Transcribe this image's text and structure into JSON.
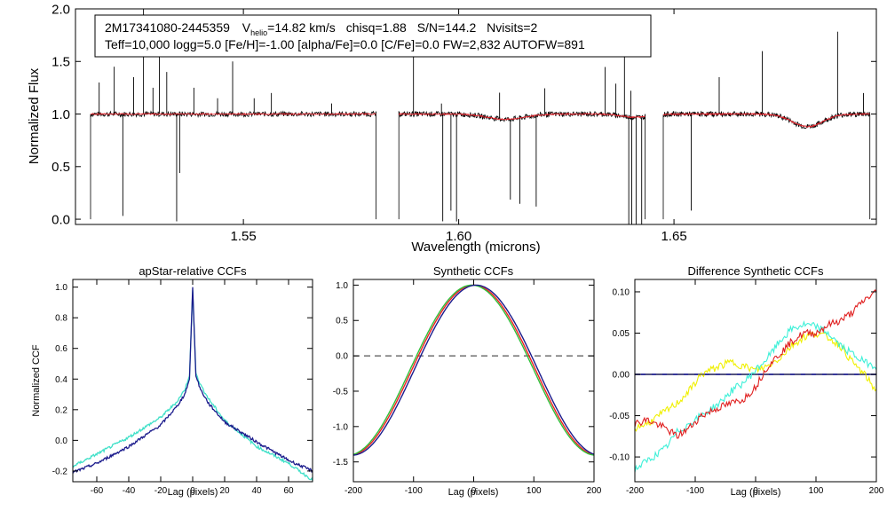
{
  "chart_data": [
    {
      "type": "line",
      "id": "spectrum",
      "info_line1": {
        "star": "2M17341080-2445359",
        "v_prefix": "V",
        "v_sub": "helio",
        "v_value": "=14.82 km/s",
        "chisq": "chisq=1.88",
        "sn": "S/N=144.2",
        "nvisits": "Nvisits=2"
      },
      "info_line2": "Teff=10,000 logg=5.0 [Fe/H]=-1.00 [alpha/Fe]=0.0 [C/Fe]=0.0 FW=2,832 AUTOFW=891",
      "xlabel": "Wavelength (microns)",
      "ylabel": "Normalized Flux",
      "xlim": [
        1.511,
        1.697
      ],
      "ylim": [
        -0.05,
        2.0
      ],
      "xticks": [
        "1.55",
        "1.60",
        "1.65"
      ],
      "xtick_values": [
        1.55,
        1.6,
        1.65
      ],
      "yticks": [
        "0.0",
        "0.5",
        "1.0",
        "1.5",
        "2.0"
      ],
      "ytick_values": [
        0.0,
        0.5,
        1.0,
        1.5,
        2.0
      ],
      "chips": [
        [
          1.5145,
          1.5808
        ],
        [
          1.5861,
          1.6433
        ],
        [
          1.6475,
          1.6955
        ]
      ],
      "dips": [
        {
          "x": 1.522,
          "depth": 0.95
        },
        {
          "x": 1.5345,
          "depth": 1.0
        },
        {
          "x": 1.5352,
          "depth": 0.55
        },
        {
          "x": 1.5963,
          "depth": 1.0
        },
        {
          "x": 1.5982,
          "depth": 0.9
        },
        {
          "x": 1.5995,
          "depth": 1.0
        },
        {
          "x": 1.612,
          "depth": 0.75
        },
        {
          "x": 1.6142,
          "depth": 0.8
        },
        {
          "x": 1.618,
          "depth": 0.85
        },
        {
          "x": 1.6395,
          "depth": 1.0
        },
        {
          "x": 1.6402,
          "depth": 1.0
        },
        {
          "x": 1.6412,
          "depth": 1.0
        },
        {
          "x": 1.6425,
          "depth": 1.0
        },
        {
          "x": 1.654,
          "depth": 0.9
        }
      ],
      "spikes": [
        {
          "x": 1.5165,
          "h": 0.3
        },
        {
          "x": 1.52,
          "h": 0.45
        },
        {
          "x": 1.5245,
          "h": 0.35
        },
        {
          "x": 1.5268,
          "h": 1.0
        },
        {
          "x": 1.529,
          "h": 0.25
        },
        {
          "x": 1.5305,
          "h": 0.55
        },
        {
          "x": 1.5322,
          "h": 0.4
        },
        {
          "x": 1.5385,
          "h": 0.25
        },
        {
          "x": 1.544,
          "h": 0.15
        },
        {
          "x": 1.5475,
          "h": 0.5
        },
        {
          "x": 1.5525,
          "h": 0.15
        },
        {
          "x": 1.5565,
          "h": 0.2
        },
        {
          "x": 1.5705,
          "h": 0.1
        },
        {
          "x": 1.5895,
          "h": 0.6
        },
        {
          "x": 1.596,
          "h": 0.1
        },
        {
          "x": 1.6095,
          "h": 0.25
        },
        {
          "x": 1.62,
          "h": 0.25
        },
        {
          "x": 1.634,
          "h": 0.45
        },
        {
          "x": 1.6365,
          "h": 0.3
        },
        {
          "x": 1.6385,
          "h": 0.6
        },
        {
          "x": 1.64,
          "h": 0.25
        },
        {
          "x": 1.6605,
          "h": 0.35
        },
        {
          "x": 1.6705,
          "h": 0.6
        },
        {
          "x": 1.688,
          "h": 0.8
        },
        {
          "x": 1.694,
          "h": 0.2
        }
      ],
      "features": [
        {
          "x": 1.611,
          "width": 0.006,
          "depth": 0.05
        },
        {
          "x": 1.641,
          "width": 0.0045,
          "depth": 0.03
        },
        {
          "x": 1.681,
          "width": 0.005,
          "depth": 0.12
        }
      ],
      "series": [
        {
          "name": "observed",
          "color": "#000000"
        },
        {
          "name": "model",
          "color": "#e8242c"
        }
      ]
    },
    {
      "type": "line",
      "id": "apstar_ccf",
      "title": "apStar-relative CCFs",
      "xlabel": "Lag (pixels)",
      "ylabel": "Normalized CCF",
      "xlim": [
        -75,
        75
      ],
      "ylim": [
        -0.27,
        1.05
      ],
      "xticks": [
        "-60",
        "-40",
        "-20",
        "0",
        "20",
        "40",
        "60"
      ],
      "xtick_values": [
        -60,
        -40,
        -20,
        0,
        20,
        40,
        60
      ],
      "yticks": [
        "-0.2",
        "0.0",
        "0.2",
        "0.4",
        "0.6",
        "0.8",
        "1.0"
      ],
      "ytick_values": [
        -0.2,
        0.0,
        0.2,
        0.4,
        0.6,
        0.8,
        1.0
      ],
      "series": [
        {
          "name": "visit 1",
          "color": "#1b1b8c",
          "x": [
            -75,
            -60,
            -40,
            -20,
            -10,
            -5,
            -2,
            0,
            2,
            5,
            10,
            20,
            40,
            60,
            75
          ],
          "y": [
            -0.21,
            -0.15,
            -0.04,
            0.1,
            0.22,
            0.3,
            0.4,
            1.0,
            0.42,
            0.33,
            0.24,
            0.12,
            -0.01,
            -0.13,
            -0.2
          ]
        },
        {
          "name": "visit 2",
          "color": "#3fe0c8",
          "x": [
            -75,
            -60,
            -40,
            -20,
            -10,
            -5,
            -2,
            0,
            2,
            5,
            10,
            20,
            40,
            60,
            75
          ],
          "y": [
            -0.17,
            -0.09,
            0.02,
            0.15,
            0.25,
            0.33,
            0.42,
            0.98,
            0.44,
            0.36,
            0.27,
            0.13,
            -0.04,
            -0.15,
            -0.26
          ]
        }
      ]
    },
    {
      "type": "line",
      "id": "synthetic_ccf",
      "title": "Synthetic CCFs",
      "xlabel": "Lag (pixels)",
      "xlim": [
        -200,
        200
      ],
      "ylim": [
        -1.78,
        1.08
      ],
      "xticks": [
        "-200",
        "-100",
        "0",
        "100",
        "200"
      ],
      "xtick_values": [
        -200,
        -100,
        0,
        100,
        200
      ],
      "yticks": [
        "-1.5",
        "-1.0",
        "-0.5",
        "0.0",
        "0.5",
        "1.0"
      ],
      "ytick_values": [
        -1.5,
        -1.0,
        -0.5,
        0.0,
        0.5,
        1.0
      ],
      "reference_y": 0.0,
      "series": [
        {
          "name": "synthetic 1",
          "color": "#ee2020",
          "shift": 0
        },
        {
          "name": "synthetic 2",
          "color": "#2fbf3a",
          "shift": -3
        },
        {
          "name": "synthetic 3",
          "color": "#1b1b8c",
          "shift": 4
        }
      ]
    },
    {
      "type": "line",
      "id": "difference_ccf",
      "title": "Difference Synthetic CCFs",
      "xlabel": "Lag (pixels)",
      "xlim": [
        -200,
        200
      ],
      "ylim": [
        -0.13,
        0.115
      ],
      "xticks": [
        "-200",
        "-100",
        "0",
        "100",
        "200"
      ],
      "xtick_values": [
        -200,
        -100,
        0,
        100,
        200
      ],
      "yticks": [
        "-0.10",
        "-0.05",
        "0.00",
        "0.05",
        "0.10"
      ],
      "ytick_values": [
        -0.1,
        -0.05,
        0.0,
        0.05,
        0.1
      ],
      "reference_y": 0.0,
      "series": [
        {
          "name": "red",
          "color": "#e02020",
          "x": [
            -200,
            -180,
            -150,
            -130,
            -110,
            -90,
            -60,
            -40,
            -20,
            0,
            20,
            40,
            60,
            80,
            100,
            120,
            140,
            160,
            180,
            200
          ],
          "y": [
            -0.06,
            -0.055,
            -0.065,
            -0.075,
            -0.065,
            -0.05,
            -0.04,
            -0.035,
            -0.03,
            -0.015,
            0.01,
            0.025,
            0.04,
            0.05,
            0.05,
            0.06,
            0.065,
            0.075,
            0.09,
            0.1
          ]
        },
        {
          "name": "yellow",
          "color": "#f0f000",
          "x": [
            -200,
            -180,
            -150,
            -130,
            -110,
            -90,
            -60,
            -40,
            -20,
            0,
            20,
            40,
            60,
            80,
            100,
            120,
            140,
            160,
            180,
            200
          ],
          "y": [
            -0.065,
            -0.06,
            -0.045,
            -0.035,
            -0.02,
            0.0,
            0.01,
            0.015,
            0.01,
            0.005,
            0.01,
            0.02,
            0.035,
            0.045,
            0.05,
            0.045,
            0.035,
            0.015,
            0.0,
            -0.02
          ]
        },
        {
          "name": "cyan",
          "color": "#3ef0d8",
          "x": [
            -200,
            -180,
            -150,
            -130,
            -110,
            -90,
            -60,
            -40,
            -20,
            0,
            20,
            40,
            60,
            80,
            100,
            120,
            140,
            160,
            180,
            200
          ],
          "y": [
            -0.115,
            -0.105,
            -0.09,
            -0.07,
            -0.06,
            -0.05,
            -0.035,
            -0.02,
            -0.01,
            0.005,
            0.02,
            0.04,
            0.055,
            0.06,
            0.058,
            0.05,
            0.035,
            0.025,
            0.015,
            0.01
          ]
        },
        {
          "name": "reference",
          "color": "#1b1b8c",
          "x": [
            -200,
            200
          ],
          "y": [
            0.0,
            0.0
          ]
        }
      ]
    }
  ]
}
